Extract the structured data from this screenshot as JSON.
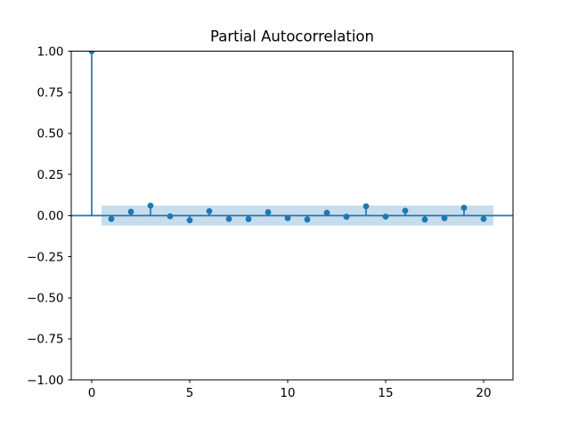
{
  "figure": {
    "kind": "matplotlib-figure",
    "background": "#ffffff"
  },
  "chart_data": {
    "type": "stem",
    "title": "Partial Autocorrelation",
    "xlabel": "",
    "ylabel": "",
    "x": [
      0,
      1,
      2,
      3,
      4,
      5,
      6,
      7,
      8,
      9,
      10,
      11,
      12,
      13,
      14,
      15,
      16,
      17,
      18,
      19,
      20
    ],
    "values": [
      1.0,
      -0.02,
      0.024,
      0.061,
      -0.004,
      -0.028,
      0.027,
      -0.02,
      -0.021,
      0.021,
      -0.015,
      -0.024,
      0.018,
      -0.007,
      0.057,
      -0.006,
      0.03,
      -0.024,
      -0.015,
      0.048,
      -0.02
    ],
    "confidence_band": {
      "x_start": 0.5,
      "x_end": 20.5,
      "upper": 0.061,
      "lower": -0.061
    },
    "zero_line": 0.0,
    "xlim": [
      -1.045,
      21.5
    ],
    "ylim": [
      -1.0,
      1.0
    ],
    "xticks": {
      "values": [
        0,
        5,
        10,
        15,
        20
      ],
      "labels": [
        "0",
        "5",
        "10",
        "15",
        "20"
      ]
    },
    "yticks": {
      "values": [
        1.0,
        0.75,
        0.5,
        0.25,
        0.0,
        -0.25,
        -0.5,
        -0.75,
        -1.0
      ],
      "labels": [
        "1.00",
        "0.75",
        "0.50",
        "0.25",
        "0.00",
        "−0.25",
        "−0.50",
        "−0.75",
        "−1.00"
      ]
    },
    "grid": false,
    "legend": "none",
    "colors": {
      "series": "#1f77b4",
      "confidence_band_fill": "#c7ddec",
      "axis": "#000000",
      "tick_text": "#000000",
      "background": "#ffffff"
    }
  }
}
